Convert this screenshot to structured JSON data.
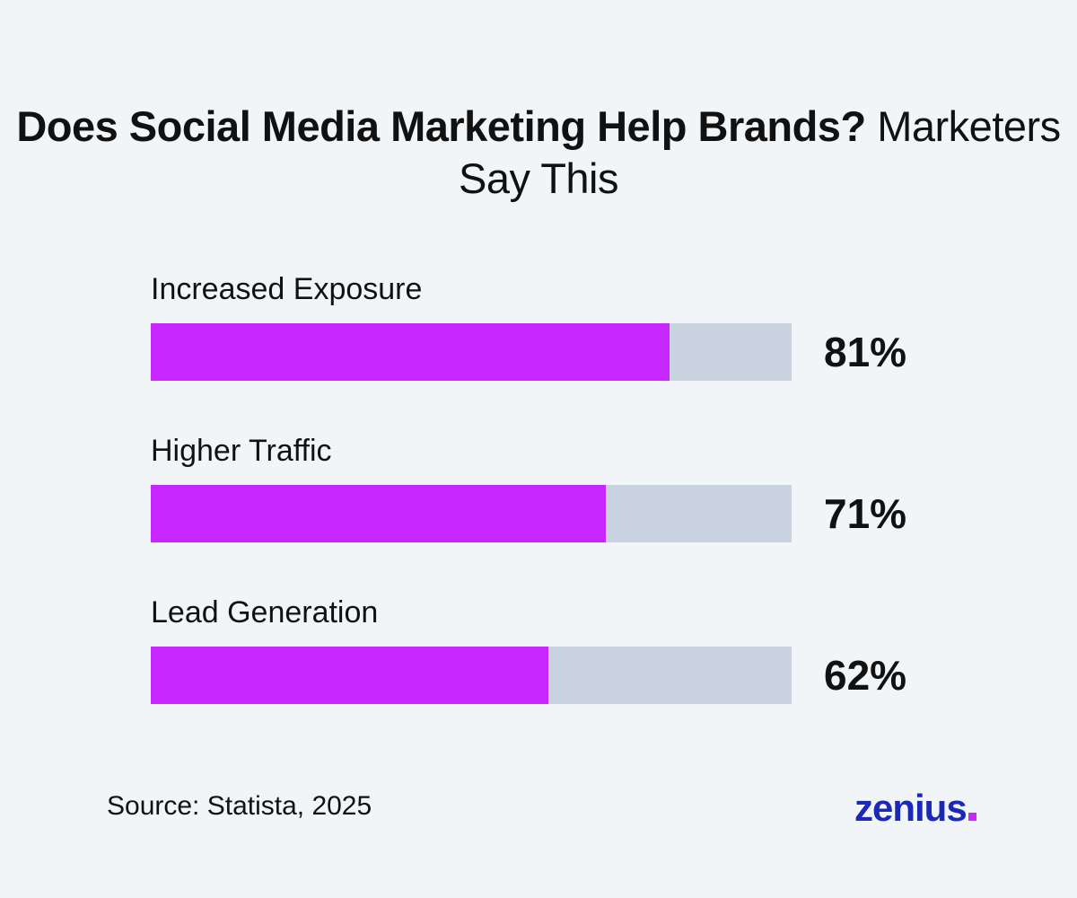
{
  "chart_data": {
    "type": "bar",
    "orientation": "horizontal",
    "title": "Does Social Media Marketing Help Brands? Marketers Say This",
    "title_bold": "Does Social Media Marketing Help Brands?",
    "title_light": "Marketers Say This",
    "categories": [
      "Increased Exposure",
      "Higher Traffic",
      "Lead Generation"
    ],
    "values": [
      81,
      71,
      62
    ],
    "value_labels": [
      "81%",
      "71%",
      "62%"
    ],
    "xlim": [
      0,
      100
    ],
    "grid": false,
    "bar_color": "#c826ff",
    "track_color": "#c8d3df"
  },
  "footer": {
    "source": "Source: Statista, 2025",
    "logo_text": "zenius",
    "logo_color": "#1a29b8",
    "logo_dot_color": "#c826ff"
  },
  "background_color": "#f2f5f8"
}
